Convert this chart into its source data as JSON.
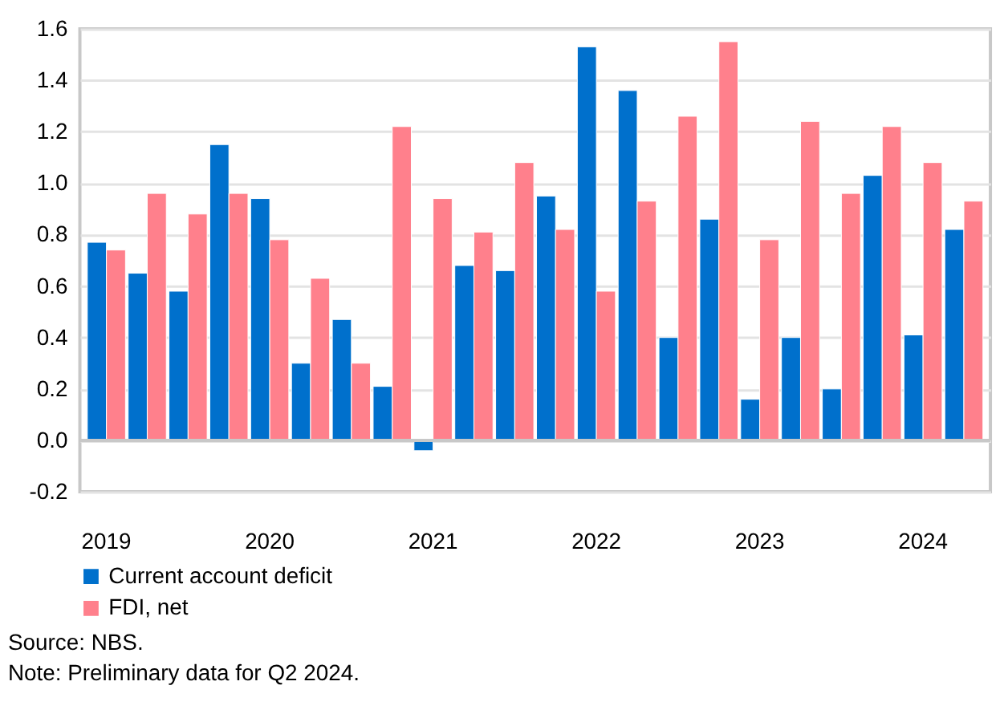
{
  "chart_data": {
    "type": "bar",
    "categories": [
      "2019",
      null,
      null,
      null,
      "2020",
      null,
      null,
      null,
      "2021",
      null,
      null,
      null,
      "2022",
      null,
      null,
      null,
      "2023",
      null,
      null,
      null,
      "2024",
      null
    ],
    "series": [
      {
        "name": "Current account deficit",
        "color": "#0070cc",
        "values": [
          0.77,
          0.65,
          0.58,
          1.15,
          0.94,
          0.3,
          0.47,
          0.21,
          -0.04,
          0.68,
          0.66,
          0.95,
          1.53,
          1.36,
          0.4,
          0.86,
          0.16,
          0.4,
          0.2,
          1.03,
          0.41,
          0.82
        ]
      },
      {
        "name": "FDI, net",
        "color": "#ff808c",
        "values": [
          0.74,
          0.96,
          0.88,
          0.96,
          0.78,
          0.63,
          0.3,
          1.22,
          0.94,
          0.81,
          1.08,
          0.82,
          0.58,
          0.93,
          1.26,
          1.55,
          0.78,
          1.24,
          0.96,
          1.22,
          1.08,
          0.93
        ]
      }
    ],
    "ylim": [
      -0.2,
      1.6
    ],
    "yticks": [
      {
        "value": -0.2,
        "label": "-0.2"
      },
      {
        "value": 0,
        "label": "0.0"
      },
      {
        "value": 0.2,
        "label": "0.2"
      },
      {
        "value": 0.4,
        "label": "0.4"
      },
      {
        "value": 0.6,
        "label": "0.6"
      },
      {
        "value": 0.8,
        "label": "0.8"
      },
      {
        "value": 1.0,
        "label": "1.0"
      },
      {
        "value": 1.2,
        "label": "1.2"
      },
      {
        "value": 1.4,
        "label": "1.4"
      },
      {
        "value": 1.6,
        "label": "1.6"
      }
    ],
    "grid": "y",
    "legend": "bottom left",
    "annotations": [
      "Source: NBS.",
      "Note: Preliminary data for Q2 2024."
    ]
  }
}
